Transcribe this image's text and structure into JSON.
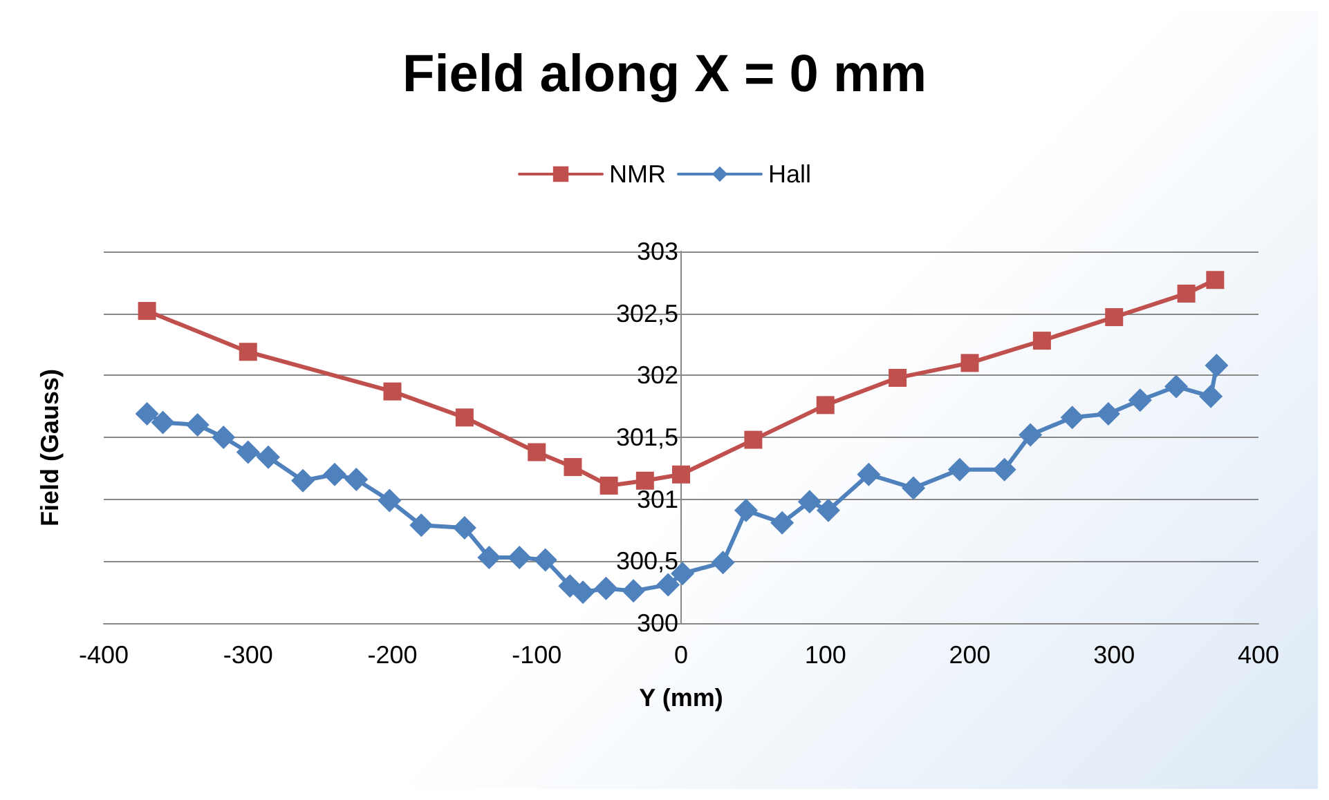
{
  "chart_data": {
    "type": "line",
    "title": "Field along X = 0 mm",
    "xlabel": "Y (mm)",
    "ylabel": "Field (Gauss)",
    "xlim": [
      -400,
      400
    ],
    "xticks": [
      -400,
      -300,
      -200,
      -100,
      0,
      100,
      200,
      300,
      400
    ],
    "ylim": [
      300,
      303
    ],
    "yticks": [
      300,
      {
        "value": 300.5,
        "label": "300,5"
      },
      301,
      {
        "value": 301.5,
        "label": "301,5"
      },
      302,
      {
        "value": 302.5,
        "label": "302,5"
      },
      303
    ],
    "grid": "y",
    "legend": "top",
    "series": [
      {
        "name": "NMR",
        "color": "#c0504d",
        "marker": "square",
        "x": [
          -370,
          -300,
          -200,
          -150,
          -100,
          -75,
          -50,
          -25,
          0,
          50,
          100,
          150,
          200,
          250,
          300,
          350,
          370
        ],
        "values": [
          302.52,
          302.19,
          301.87,
          301.66,
          301.38,
          301.26,
          301.11,
          301.15,
          301.2,
          301.48,
          301.76,
          301.98,
          302.1,
          302.28,
          302.47,
          302.66,
          302.77
        ]
      },
      {
        "name": "Hall",
        "color": "#4f81bd",
        "marker": "diamond",
        "x": [
          -370,
          -359,
          -335,
          -317,
          -300,
          -286,
          -262,
          -240,
          -225,
          -202,
          -180,
          -150,
          -133,
          -112,
          -94,
          -77,
          -68,
          -52,
          -33,
          -9,
          1,
          29,
          45,
          70,
          89,
          102,
          130,
          161,
          193,
          224,
          242,
          271,
          296,
          318,
          343,
          367,
          371
        ],
        "values": [
          301.69,
          301.62,
          301.6,
          301.5,
          301.38,
          301.34,
          301.15,
          301.2,
          301.16,
          300.99,
          300.79,
          300.77,
          300.53,
          300.53,
          300.51,
          300.3,
          300.25,
          300.28,
          300.26,
          300.31,
          300.4,
          300.49,
          300.91,
          300.81,
          300.98,
          300.91,
          301.2,
          301.09,
          301.24,
          301.24,
          301.52,
          301.66,
          301.69,
          301.8,
          301.91,
          301.83,
          302.08
        ]
      }
    ]
  }
}
